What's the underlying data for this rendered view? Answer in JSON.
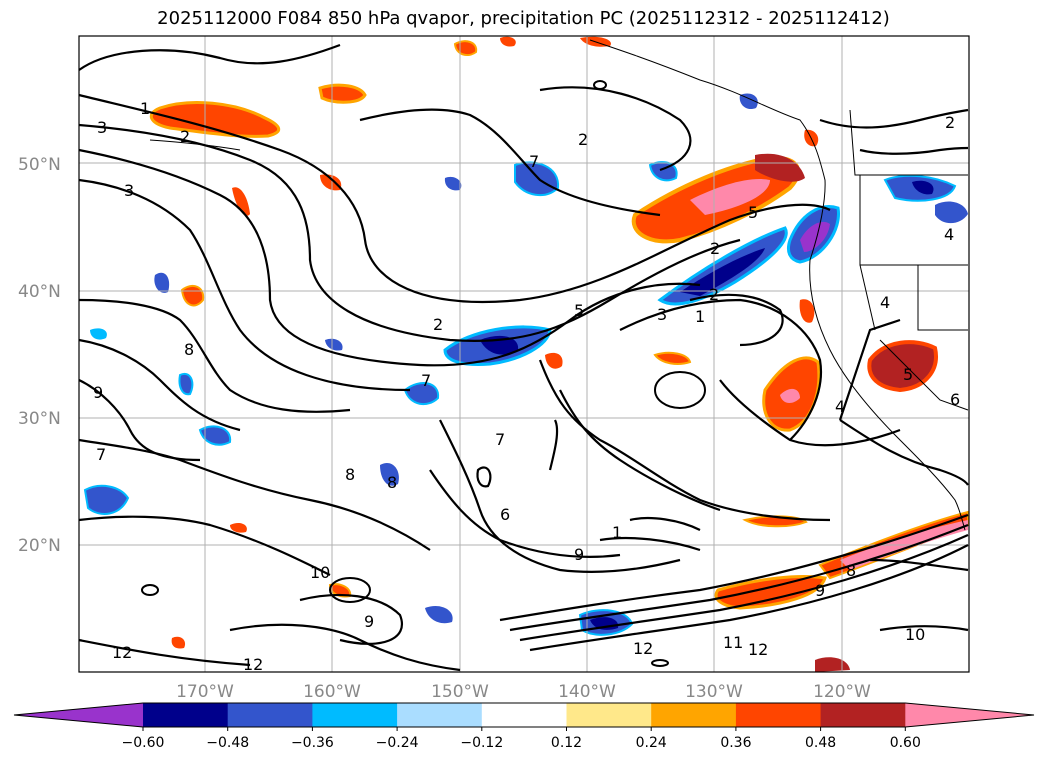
{
  "title": "2025112000 F084 850 hPa qvapor, precipitation PC (2025112312 - 2025112412)",
  "map": {
    "lat_labels": [
      "50°N",
      "40°N",
      "30°N",
      "20°N"
    ],
    "lon_labels": [
      "170°W",
      "160°W",
      "150°W",
      "140°W",
      "130°W",
      "120°W"
    ]
  },
  "colorbar": {
    "ticks": [
      "−0.60",
      "−0.48",
      "−0.36",
      "−0.24",
      "−0.12",
      "0.12",
      "0.24",
      "0.36",
      "0.48",
      "0.60"
    ],
    "colors": [
      "#9933cc",
      "#00008b",
      "#3355cc",
      "#00bbff",
      "#aaddff",
      "#ffffff",
      "#ffe88a",
      "#ffa500",
      "#ff4500",
      "#b22222",
      "#ff88aa"
    ]
  },
  "contour_labels": [
    {
      "text": "1"
    },
    {
      "text": "2"
    },
    {
      "text": "3"
    },
    {
      "text": "2"
    },
    {
      "text": "3"
    },
    {
      "text": "2"
    },
    {
      "text": "2"
    },
    {
      "text": "5"
    },
    {
      "text": "3"
    },
    {
      "text": "1"
    },
    {
      "text": "2"
    },
    {
      "text": "8"
    },
    {
      "text": "9"
    },
    {
      "text": "7"
    },
    {
      "text": "7"
    },
    {
      "text": "7"
    },
    {
      "text": "8"
    },
    {
      "text": "8"
    },
    {
      "text": "6"
    },
    {
      "text": "1"
    },
    {
      "text": "9"
    },
    {
      "text": "10"
    },
    {
      "text": "9"
    },
    {
      "text": "12"
    },
    {
      "text": "12"
    },
    {
      "text": "12"
    },
    {
      "text": "11"
    },
    {
      "text": "12"
    },
    {
      "text": "10"
    },
    {
      "text": "9"
    },
    {
      "text": "8"
    },
    {
      "text": "4"
    },
    {
      "text": "4"
    },
    {
      "text": "5"
    },
    {
      "text": "6"
    },
    {
      "text": "4"
    },
    {
      "text": "2"
    },
    {
      "text": "5"
    },
    {
      "text": "7"
    }
  ]
}
